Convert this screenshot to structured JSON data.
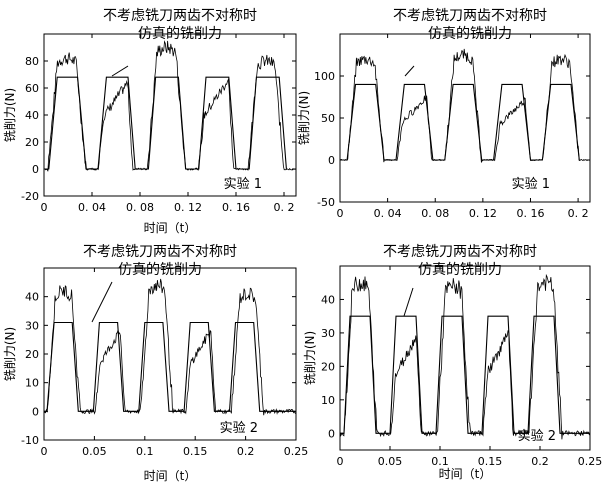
{
  "colors": {
    "line": "#000000",
    "background": "#ffffff"
  },
  "chart_data": [
    {
      "type": "line",
      "panel": "top-left",
      "title": "",
      "xlabel": "时间（t）",
      "ylabel": "铣削力(N)",
      "xlim": [
        0,
        0.21
      ],
      "ylim": [
        -20,
        100
      ],
      "x_ticks": [
        0,
        0.04,
        0.08,
        0.12,
        0.16,
        0.2
      ],
      "x_tick_labels": [
        "0",
        "0. 04",
        "0. 08",
        "0. 12",
        "0. 16",
        "0. 2"
      ],
      "y_ticks": [
        -20,
        0,
        20,
        40,
        60,
        80
      ],
      "y_tick_labels": [
        "-20",
        "0",
        "20",
        "40",
        "60",
        "80"
      ],
      "annotation": [
        "不考虑铣刀两齿不对称时",
        "仿真的铣削力"
      ],
      "legend": "实验 1",
      "legend_position": "bottom-right",
      "series": [
        {
          "role": "simulation",
          "x": [
            0,
            0.004,
            0.011,
            0.028,
            0.035,
            0.045,
            0.052,
            0.07,
            0.076,
            0.087,
            0.093,
            0.112,
            0.118,
            0.129,
            0.135,
            0.154,
            0.16,
            0.171,
            0.177,
            0.196,
            0.202
          ],
          "values": [
            0,
            0,
            68,
            68,
            0,
            0,
            68,
            68,
            0,
            0,
            68,
            68,
            0,
            0,
            68,
            68,
            0,
            0,
            68,
            68,
            0
          ]
        },
        {
          "role": "experiment",
          "pulses": [
            {
              "start": 0.003,
              "end": 0.035,
              "peak": 82,
              "profile": "hump"
            },
            {
              "start": 0.045,
              "end": 0.074,
              "peak": 64,
              "profile": "ramp"
            },
            {
              "start": 0.086,
              "end": 0.118,
              "peak": 90,
              "profile": "hump"
            },
            {
              "start": 0.129,
              "end": 0.158,
              "peak": 66,
              "profile": "ramp"
            },
            {
              "start": 0.17,
              "end": 0.2,
              "peak": 80,
              "profile": "hump"
            }
          ]
        }
      ]
    },
    {
      "type": "line",
      "panel": "top-right",
      "title": "",
      "xlabel": "",
      "ylabel": "铣削力(N)",
      "xlim": [
        0,
        0.21
      ],
      "ylim": [
        -50,
        150
      ],
      "x_ticks": [
        0,
        0.04,
        0.08,
        0.12,
        0.16,
        0.2
      ],
      "x_tick_labels": [
        "0",
        "0. 04",
        "0. 08",
        "0. 12",
        "0. 16",
        "0. 2"
      ],
      "y_ticks": [
        -50,
        0,
        50,
        100
      ],
      "y_tick_labels": [
        "-50",
        "0",
        "50",
        "100"
      ],
      "annotation": [
        "不考虑铣刀两齿不对称时",
        "仿真的铣削力"
      ],
      "legend": "实验 1",
      "legend_position": "bottom-right",
      "series": [
        {
          "role": "simulation",
          "x": [
            0,
            0.006,
            0.013,
            0.03,
            0.037,
            0.047,
            0.054,
            0.071,
            0.078,
            0.088,
            0.095,
            0.112,
            0.119,
            0.129,
            0.136,
            0.153,
            0.16,
            0.17,
            0.177,
            0.194,
            0.201
          ],
          "values": [
            0,
            0,
            90,
            90,
            0,
            0,
            90,
            90,
            0,
            0,
            90,
            90,
            0,
            0,
            90,
            90,
            0,
            0,
            90,
            90,
            0
          ]
        },
        {
          "role": "experiment",
          "pulses": [
            {
              "start": 0.006,
              "end": 0.037,
              "peak": 120,
              "profile": "hump"
            },
            {
              "start": 0.048,
              "end": 0.077,
              "peak": 75,
              "profile": "ramp"
            },
            {
              "start": 0.088,
              "end": 0.119,
              "peak": 125,
              "profile": "hump"
            },
            {
              "start": 0.13,
              "end": 0.16,
              "peak": 72,
              "profile": "ramp"
            },
            {
              "start": 0.17,
              "end": 0.201,
              "peak": 120,
              "profile": "hump"
            }
          ]
        }
      ]
    },
    {
      "type": "line",
      "panel": "bottom-left",
      "title": "",
      "xlabel": "时间（t）",
      "ylabel": "铣削力(N)",
      "xlim": [
        0,
        0.25
      ],
      "ylim": [
        -10,
        50
      ],
      "x_ticks": [
        0,
        0.05,
        0.1,
        0.15,
        0.2,
        0.25
      ],
      "x_tick_labels": [
        "0",
        "0.05",
        "0.1",
        "0.15",
        "0.2",
        "0.25"
      ],
      "y_ticks": [
        -10,
        0,
        10,
        20,
        30,
        40
      ],
      "y_tick_labels": [
        "-10",
        "0",
        "10",
        "20",
        "30",
        "40"
      ],
      "annotation": [
        "不考虑铣刀两齿不对称时",
        "仿真的铣削力"
      ],
      "legend": "实验 2",
      "legend_position": "bottom-right",
      "series": [
        {
          "role": "simulation",
          "x": [
            0,
            0.003,
            0.01,
            0.028,
            0.034,
            0.049,
            0.055,
            0.073,
            0.079,
            0.094,
            0.1,
            0.118,
            0.124,
            0.139,
            0.145,
            0.163,
            0.169,
            0.184,
            0.19,
            0.208,
            0.214,
            0.25
          ],
          "values": [
            0,
            0,
            31,
            31,
            0,
            0,
            31,
            31,
            0,
            0,
            31,
            31,
            0,
            0,
            31,
            31,
            0,
            0,
            31,
            31,
            0,
            0
          ]
        },
        {
          "role": "experiment",
          "pulses": [
            {
              "start": 0.003,
              "end": 0.036,
              "peak": 42,
              "profile": "hump"
            },
            {
              "start": 0.051,
              "end": 0.08,
              "peak": 28,
              "profile": "ramp"
            },
            {
              "start": 0.096,
              "end": 0.128,
              "peak": 44,
              "profile": "hump"
            },
            {
              "start": 0.141,
              "end": 0.17,
              "peak": 28,
              "profile": "ramp"
            },
            {
              "start": 0.186,
              "end": 0.218,
              "peak": 41,
              "profile": "hump"
            }
          ]
        }
      ]
    },
    {
      "type": "line",
      "panel": "bottom-right",
      "title": "",
      "xlabel": "时间（t）",
      "ylabel": "铣削力(N)",
      "xlim": [
        0,
        0.25
      ],
      "ylim": [
        -5,
        50
      ],
      "x_ticks": [
        0,
        0.05,
        0.1,
        0.15,
        0.2,
        0.25
      ],
      "x_tick_labels": [
        "0",
        "0.05",
        "0.1",
        "0.15",
        "0.2",
        "0.25"
      ],
      "y_ticks": [
        0,
        10,
        20,
        30,
        40
      ],
      "y_tick_labels": [
        "0",
        "10",
        "20",
        "30",
        "40"
      ],
      "annotation": [
        "不考虑铣刀两齿不对称时",
        "仿真的铣削力"
      ],
      "legend": "实验 2",
      "legend_position": "bottom-right",
      "series": [
        {
          "role": "simulation",
          "x": [
            0,
            0.004,
            0.01,
            0.03,
            0.036,
            0.05,
            0.056,
            0.076,
            0.082,
            0.096,
            0.102,
            0.122,
            0.128,
            0.142,
            0.148,
            0.168,
            0.174,
            0.188,
            0.194,
            0.214,
            0.22,
            0.25
          ],
          "values": [
            0,
            0,
            35,
            35,
            0,
            0,
            35,
            35,
            0,
            0,
            35,
            35,
            0,
            0,
            35,
            35,
            0,
            0,
            35,
            35,
            0,
            0
          ]
        },
        {
          "role": "experiment",
          "pulses": [
            {
              "start": 0.004,
              "end": 0.037,
              "peak": 45,
              "profile": "hump"
            },
            {
              "start": 0.051,
              "end": 0.081,
              "peak": 29,
              "profile": "ramp"
            },
            {
              "start": 0.097,
              "end": 0.13,
              "peak": 44,
              "profile": "hump"
            },
            {
              "start": 0.143,
              "end": 0.173,
              "peak": 30,
              "profile": "ramp"
            },
            {
              "start": 0.189,
              "end": 0.222,
              "peak": 45,
              "profile": "hump"
            }
          ]
        }
      ]
    }
  ]
}
